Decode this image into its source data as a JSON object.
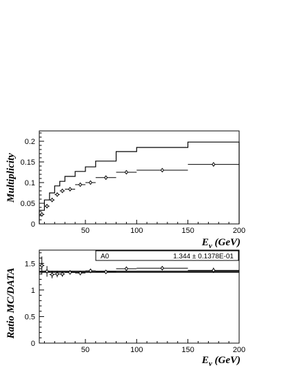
{
  "chart_data": [
    {
      "type": "line",
      "ylabel": "Multiplicity",
      "xlabel": "E",
      "xlabel_sub": "ν",
      "xlabel_unit": " (GeV)",
      "xlim": [
        5,
        200
      ],
      "ylim": [
        0,
        0.225
      ],
      "xticks": [
        50,
        100,
        150,
        200
      ],
      "yticks": [
        0,
        0.05,
        0.1,
        0.15,
        0.2
      ],
      "ytick_labels": [
        "0",
        "0.05",
        "0.1",
        "0.15",
        "0.2"
      ],
      "mc_histogram": {
        "edges": [
          5,
          10,
          15,
          20,
          25,
          30,
          40,
          50,
          60,
          80,
          100,
          150,
          200
        ],
        "values": [
          0.033,
          0.058,
          0.075,
          0.092,
          0.103,
          0.115,
          0.127,
          0.138,
          0.152,
          0.175,
          0.185,
          0.198
        ]
      },
      "data_points": [
        {
          "x": 7.5,
          "xerr": 2.5,
          "y": 0.023,
          "yerr": 0.004
        },
        {
          "x": 12.5,
          "xerr": 2.5,
          "y": 0.043,
          "yerr": 0.003
        },
        {
          "x": 17.5,
          "xerr": 2.5,
          "y": 0.058,
          "yerr": 0.003
        },
        {
          "x": 22.5,
          "xerr": 2.5,
          "y": 0.071,
          "yerr": 0.003
        },
        {
          "x": 27.5,
          "xerr": 2.5,
          "y": 0.08,
          "yerr": 0.003
        },
        {
          "x": 35,
          "xerr": 5,
          "y": 0.084,
          "yerr": 0.003
        },
        {
          "x": 45,
          "xerr": 5,
          "y": 0.095,
          "yerr": 0.003
        },
        {
          "x": 55,
          "xerr": 5,
          "y": 0.1,
          "yerr": 0.003
        },
        {
          "x": 70,
          "xerr": 10,
          "y": 0.112,
          "yerr": 0.003
        },
        {
          "x": 90,
          "xerr": 10,
          "y": 0.125,
          "yerr": 0.003
        },
        {
          "x": 125,
          "xerr": 25,
          "y": 0.13,
          "yerr": 0.003
        },
        {
          "x": 175,
          "xerr": 25,
          "y": 0.144,
          "yerr": 0.005
        }
      ]
    },
    {
      "type": "scatter",
      "ylabel": "Ratio MC/DATA",
      "xlabel": "E",
      "xlabel_sub": "ν",
      "xlabel_unit": " (GeV)",
      "xlim": [
        5,
        200
      ],
      "ylim": [
        0,
        1.75
      ],
      "xticks": [
        50,
        100,
        150,
        200
      ],
      "yticks": [
        0,
        0.5,
        1,
        1.5
      ],
      "ytick_labels": [
        "0",
        "0.5",
        "1",
        "1.5"
      ],
      "fit": {
        "label": "A0",
        "value_text": "1.344 ±  0.1378E-01",
        "value": 1.344,
        "err": 0.01378
      },
      "data_points": [
        {
          "x": 7.5,
          "xerr": 2.5,
          "y": 1.46,
          "yerr": 0.17
        },
        {
          "x": 12.5,
          "xerr": 2.5,
          "y": 1.35,
          "yerr": 0.1
        },
        {
          "x": 17.5,
          "xerr": 2.5,
          "y": 1.29,
          "yerr": 0.07
        },
        {
          "x": 22.5,
          "xerr": 2.5,
          "y": 1.3,
          "yerr": 0.06
        },
        {
          "x": 27.5,
          "xerr": 2.5,
          "y": 1.3,
          "yerr": 0.05
        },
        {
          "x": 35,
          "xerr": 5,
          "y": 1.33,
          "yerr": 0.04
        },
        {
          "x": 45,
          "xerr": 5,
          "y": 1.32,
          "yerr": 0.04
        },
        {
          "x": 55,
          "xerr": 5,
          "y": 1.36,
          "yerr": 0.04
        },
        {
          "x": 70,
          "xerr": 10,
          "y": 1.34,
          "yerr": 0.03
        },
        {
          "x": 90,
          "xerr": 10,
          "y": 1.4,
          "yerr": 0.04
        },
        {
          "x": 125,
          "xerr": 25,
          "y": 1.41,
          "yerr": 0.04
        },
        {
          "x": 175,
          "xerr": 25,
          "y": 1.37,
          "yerr": 0.05
        }
      ]
    }
  ]
}
